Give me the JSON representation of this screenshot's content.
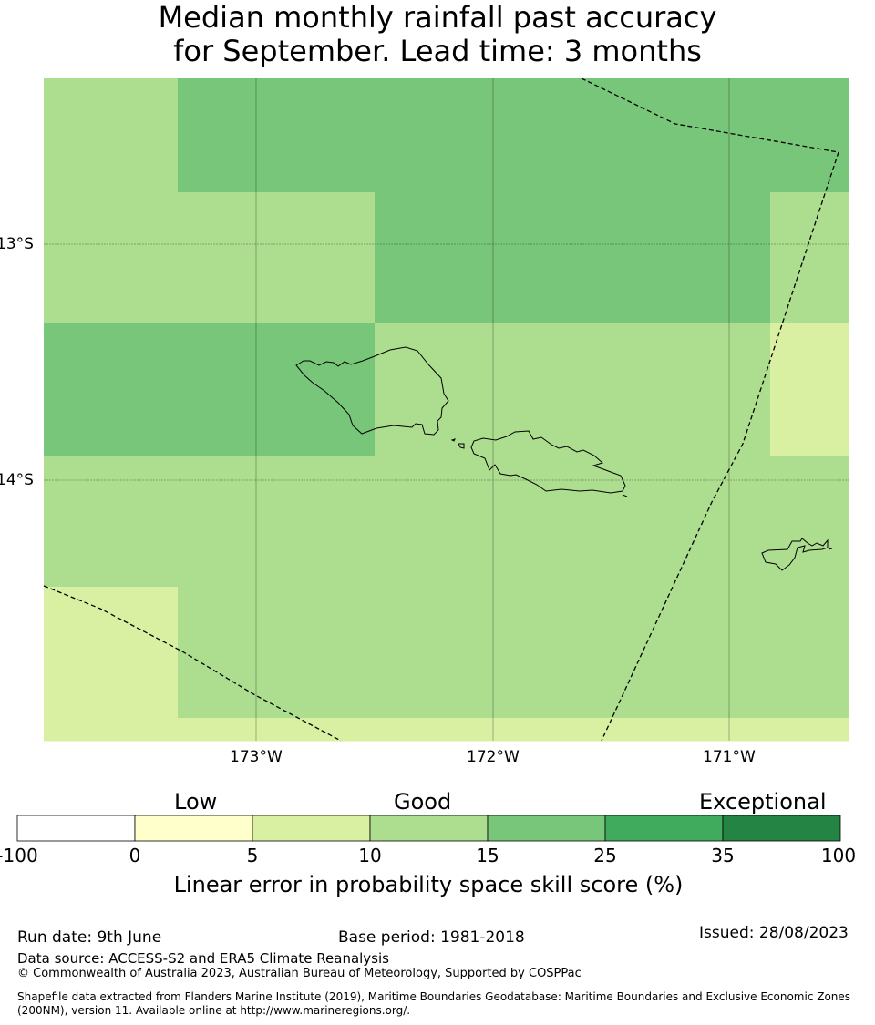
{
  "title": {
    "line1": "Median monthly rainfall past accuracy",
    "line2": "for September. Lead time: 3 months"
  },
  "map": {
    "lat_labels": [
      "13°S",
      "14°S"
    ],
    "lon_labels": [
      "173°W",
      "172°W",
      "171°W"
    ],
    "cell_values": [
      [
        12,
        20,
        20,
        20,
        20,
        20,
        20
      ],
      [
        12,
        12,
        12,
        20,
        20,
        20,
        12
      ],
      [
        12,
        12,
        12,
        20,
        20,
        20,
        12
      ],
      [
        20,
        20,
        20,
        12,
        12,
        12,
        7
      ],
      [
        20,
        20,
        20,
        12,
        12,
        12,
        7
      ],
      [
        12,
        12,
        12,
        12,
        12,
        12,
        12
      ],
      [
        12,
        12,
        12,
        12,
        12,
        12,
        12
      ],
      [
        7,
        12,
        12,
        12,
        12,
        12,
        12
      ],
      [
        7,
        12,
        12,
        12,
        12,
        12,
        12
      ],
      [
        7,
        7,
        7,
        7,
        7,
        7,
        7
      ]
    ]
  },
  "colorbar": {
    "category_labels": [
      "Low",
      "Good",
      "Exceptional"
    ],
    "ticks": [
      "-100",
      "0",
      "5",
      "10",
      "15",
      "25",
      "35",
      "100"
    ],
    "colors": [
      "#ffffff",
      "#ffffcc",
      "#d9f0a3",
      "#addd8e",
      "#78c679",
      "#41ab5d",
      "#238443"
    ],
    "label": "Linear error in probability space skill score (%)"
  },
  "footer": {
    "run_date": "Run date: 9th June",
    "base_period": "Base period: 1981-2018",
    "issued": "Issued: 28/08/2023",
    "data_source": "Data source: ACCESS-S2 and ERA5 Climate Reanalysis",
    "copyright": "© Commonwealth of Australia 2023, Australian Bureau of Meteorology, Supported by COSPPac",
    "shapefile_line1": "Shapefile data extracted from Flanders Marine Institute (2019), Maritime Boundaries Geodatabase: Maritime Boundaries and Exclusive Economic Zones",
    "shapefile_line2": "(200NM), version 11. Available online at http://www.marineregions.org/."
  }
}
